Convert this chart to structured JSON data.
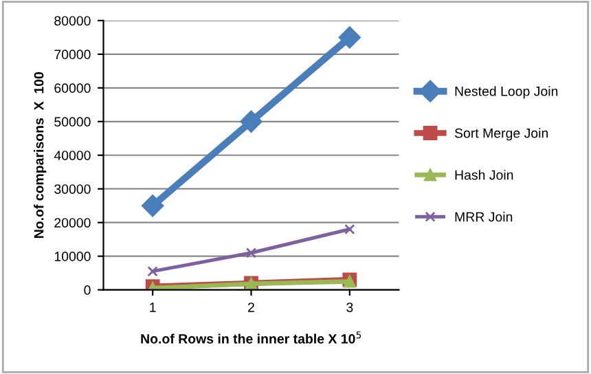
{
  "chart_data": {
    "type": "line",
    "xlabel": "No.of Rows in the inner table X 10$^{5}$",
    "ylabel": "No.of comparisons  X  100",
    "categories": [
      "1",
      "2",
      "3"
    ],
    "series": [
      {
        "name": "Nested Loop Join",
        "color": "#4a7ebb",
        "marker": "diamond",
        "values": [
          25000,
          50000,
          75000
        ]
      },
      {
        "name": "Sort Merge Join",
        "color": "#be4b48",
        "marker": "square",
        "values": [
          1000,
          2000,
          3000
        ]
      },
      {
        "name": "Hash Join",
        "color": "#98b954",
        "marker": "triangle",
        "values": [
          500,
          1800,
          2500
        ]
      },
      {
        "name": "MRR Join",
        "color": "#7d60a0",
        "marker": "cross",
        "values": [
          5500,
          11000,
          18000
        ]
      }
    ],
    "ylim": [
      0,
      80000
    ],
    "yticks": [
      0,
      10000,
      20000,
      30000,
      40000,
      50000,
      60000,
      70000,
      80000
    ],
    "grid": "y",
    "legend": "right"
  }
}
